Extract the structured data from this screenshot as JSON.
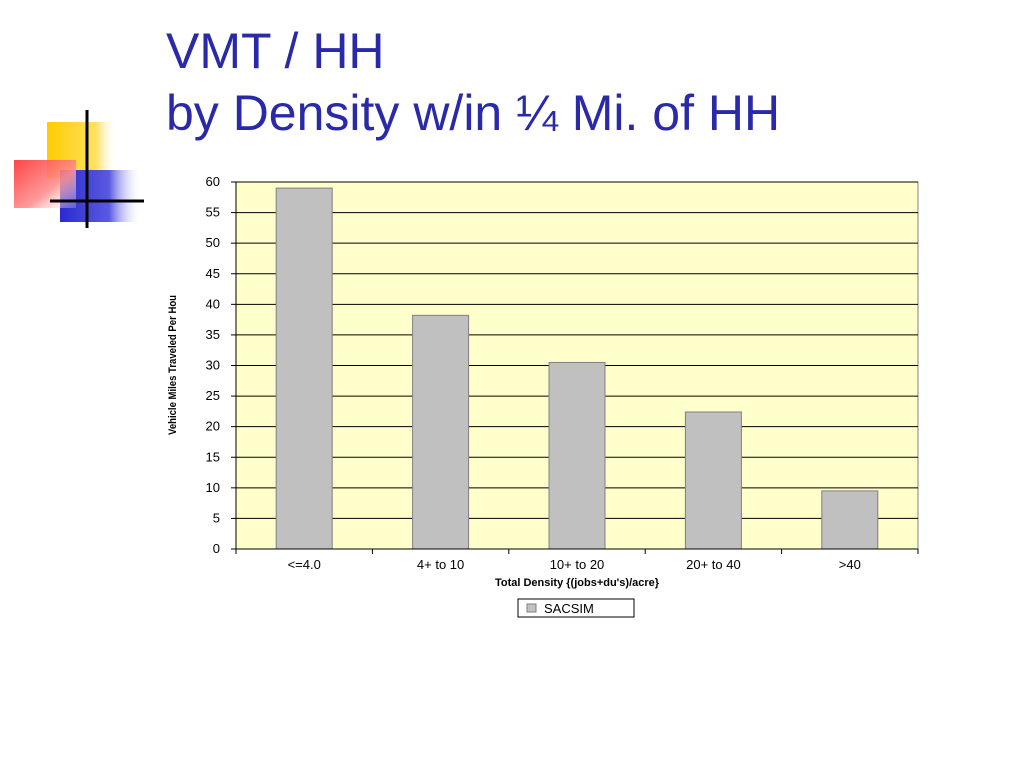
{
  "slide": {
    "title_line1": "VMT / HH",
    "title_line2": "by Density w/in ¼ Mi. of HH"
  },
  "colors": {
    "title": "#2a2aa8",
    "plot_background": "#ffffcc",
    "bar_fill": "#c0c0c0",
    "bar_stroke": "#808080",
    "logo_yellow": "#ffcc00",
    "logo_blue": "#2a2ad0",
    "logo_red": "#ff4444"
  },
  "chart_data": {
    "type": "bar",
    "categories": [
      "<=4.0",
      "4+ to 10",
      "10+ to 20",
      "20+ to 40",
      ">40"
    ],
    "series": [
      {
        "name": "SACSIM",
        "values": [
          59,
          38.2,
          30.5,
          22.4,
          9.5
        ]
      }
    ],
    "xlabel": "Total Density {(jobs+du's)/acre}",
    "ylabel": "Vehicle Miles Traveled Per Hou",
    "ylim": [
      0,
      60
    ],
    "yticks": [
      0,
      5,
      10,
      15,
      20,
      25,
      30,
      35,
      40,
      45,
      50,
      55,
      60
    ],
    "grid": true,
    "legend_position": "bottom"
  }
}
